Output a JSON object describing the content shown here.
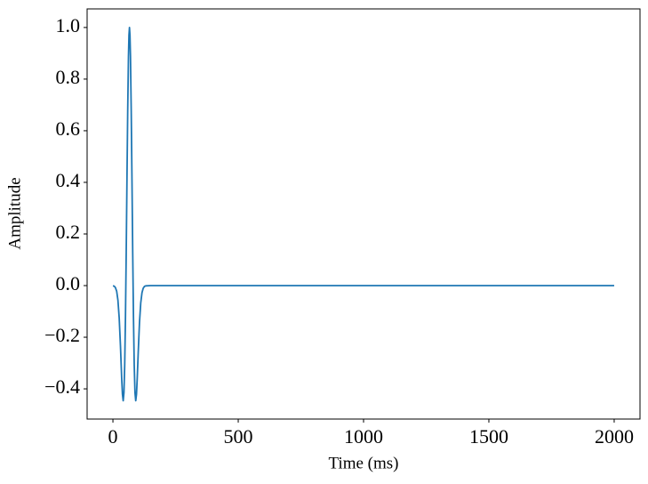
{
  "chart_data": {
    "type": "line",
    "xlabel": "Time (ms)",
    "ylabel": "Amplitude",
    "x": [
      0,
      5,
      10,
      15,
      20,
      25,
      30,
      35,
      38,
      41,
      44,
      47,
      50,
      53,
      56,
      59,
      62,
      64,
      66,
      68,
      70,
      73,
      76,
      79,
      82,
      85,
      88,
      91,
      94,
      97,
      101,
      106,
      111,
      116,
      121,
      126,
      131,
      150,
      2000
    ],
    "series": [
      {
        "color": "#1f77b4",
        "values": [
          -0.001,
          -0.002,
          -0.008,
          -0.022,
          -0.057,
          -0.125,
          -0.232,
          -0.36,
          -0.421,
          -0.446,
          -0.414,
          -0.308,
          -0.124,
          0.125,
          0.409,
          0.68,
          0.888,
          0.971,
          1.0,
          0.971,
          0.888,
          0.68,
          0.409,
          0.125,
          -0.124,
          -0.308,
          -0.414,
          -0.446,
          -0.421,
          -0.36,
          -0.258,
          -0.143,
          -0.067,
          -0.027,
          -0.01,
          -0.003,
          -0.001,
          0,
          0
        ]
      }
    ],
    "xlim": [
      -103,
      2103
    ],
    "ylim": [
      -0.517,
      1.072
    ],
    "xticks": [
      0,
      500,
      1000,
      1500,
      2000
    ],
    "yticks": [
      {
        "value": -0.4,
        "label": "−0.4"
      },
      {
        "value": -0.2,
        "label": "−0.2"
      },
      {
        "value": 0,
        "label": "0.0"
      },
      0.2,
      0.4,
      0.6,
      0.8,
      {
        "value": 1,
        "label": "1.0"
      }
    ]
  }
}
